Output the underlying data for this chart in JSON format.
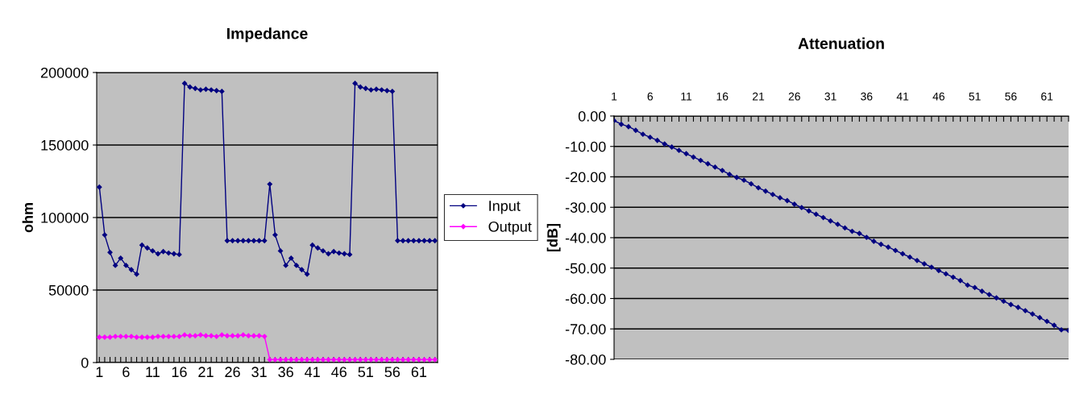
{
  "chart_data": [
    {
      "type": "line",
      "title": "Impedance",
      "ylabel": "ohm",
      "categories": [
        "1",
        null,
        null,
        null,
        null,
        "6",
        null,
        null,
        null,
        null,
        "11",
        null,
        null,
        null,
        null,
        "16",
        null,
        null,
        null,
        null,
        "21",
        null,
        null,
        null,
        null,
        "26",
        null,
        null,
        null,
        null,
        "31",
        null,
        null,
        null,
        null,
        "36",
        null,
        null,
        null,
        null,
        "41",
        null,
        null,
        null,
        null,
        "46",
        null,
        null,
        null,
        null,
        "51",
        null,
        null,
        null,
        null,
        "56",
        null,
        null,
        null,
        null,
        "61",
        null,
        null,
        null
      ],
      "series": [
        {
          "name": "Input",
          "color": "#000080",
          "values": [
            121000,
            88000,
            76000,
            67000,
            72000,
            67000,
            64000,
            61000,
            81000,
            79000,
            77000,
            75000,
            76500,
            75500,
            75000,
            74500,
            192500,
            190000,
            189000,
            188000,
            188500,
            188000,
            187500,
            187000,
            84000,
            84000,
            84000,
            84000,
            84000,
            84000,
            84000,
            84000,
            123000,
            88000,
            77000,
            67000,
            72000,
            67000,
            64000,
            61000,
            81000,
            79000,
            77000,
            75000,
            76500,
            75500,
            75000,
            74500,
            192500,
            190000,
            189000,
            188000,
            188500,
            188000,
            187500,
            187000,
            84000,
            84000,
            84000,
            84000,
            84000,
            84000,
            84000,
            84000
          ]
        },
        {
          "name": "Output",
          "color": "#ff00ff",
          "values": [
            17500,
            17500,
            17500,
            18000,
            18000,
            18000,
            18000,
            17500,
            17500,
            17500,
            17500,
            18000,
            18000,
            18000,
            18000,
            18000,
            19000,
            18500,
            18500,
            19000,
            18500,
            18500,
            18000,
            19000,
            18500,
            18500,
            18500,
            19000,
            18500,
            18500,
            18500,
            18000,
            2000,
            2000,
            2000,
            2000,
            2000,
            2000,
            2000,
            2000,
            2000,
            2000,
            2000,
            2000,
            2000,
            2000,
            2000,
            2000,
            2000,
            2000,
            2000,
            2000,
            2000,
            2000,
            2000,
            2000,
            2000,
            2000,
            2000,
            2000,
            2000,
            2000,
            2000,
            2000
          ]
        }
      ],
      "ylim": [
        0,
        200000
      ],
      "yticks": [
        0,
        50000,
        100000,
        150000,
        200000
      ],
      "grid": "y",
      "legend": "right",
      "marker": "diamond"
    },
    {
      "type": "line",
      "title": "Attenuation",
      "ylabel": "[dB]",
      "categories": [
        "1",
        null,
        null,
        null,
        null,
        "6",
        null,
        null,
        null,
        null,
        "11",
        null,
        null,
        null,
        null,
        "16",
        null,
        null,
        null,
        null,
        "21",
        null,
        null,
        null,
        null,
        "26",
        null,
        null,
        null,
        null,
        "31",
        null,
        null,
        null,
        null,
        "36",
        null,
        null,
        null,
        null,
        "41",
        null,
        null,
        null,
        null,
        "46",
        null,
        null,
        null,
        null,
        "51",
        null,
        null,
        null,
        null,
        "56",
        null,
        null,
        null,
        null,
        "61",
        null,
        null,
        null
      ],
      "series": [
        {
          "color": "#000080",
          "values": [
            -1.5,
            -2.7,
            -3.5,
            -4.7,
            -6.0,
            -7.0,
            -8.0,
            -9.2,
            -10.2,
            -11.3,
            -12.4,
            -13.5,
            -14.6,
            -15.7,
            -16.8,
            -17.9,
            -19.2,
            -20.2,
            -21.1,
            -22.3,
            -23.6,
            -24.7,
            -25.8,
            -26.9,
            -27.8,
            -29.0,
            -30.1,
            -31.2,
            -32.3,
            -33.4,
            -34.5,
            -35.6,
            -36.8,
            -37.9,
            -38.6,
            -39.9,
            -41.2,
            -42.2,
            -43.1,
            -44.2,
            -45.3,
            -46.4,
            -47.5,
            -48.6,
            -49.7,
            -50.8,
            -51.9,
            -53.0,
            -54.1,
            -55.6,
            -56.4,
            -57.6,
            -58.7,
            -59.8,
            -60.9,
            -62.0,
            -62.9,
            -64.0,
            -65.1,
            -66.3,
            -67.5,
            -68.8,
            -70.3,
            -70.5
          ]
        }
      ],
      "ylim": [
        -80,
        0
      ],
      "yticks": [
        {
          "value": -80,
          "label": "-80.00"
        },
        {
          "value": -70,
          "label": "-70.00"
        },
        {
          "value": -60,
          "label": "-60.00"
        },
        {
          "value": -50,
          "label": "-50.00"
        },
        {
          "value": -40,
          "label": "-40.00"
        },
        {
          "value": -30,
          "label": "-30.00"
        },
        {
          "value": -20,
          "label": "-20.00"
        },
        {
          "value": -10,
          "label": "-10.00"
        },
        {
          "value": 0,
          "label": "0.00"
        }
      ],
      "grid": "y",
      "marker": "diamond"
    }
  ]
}
